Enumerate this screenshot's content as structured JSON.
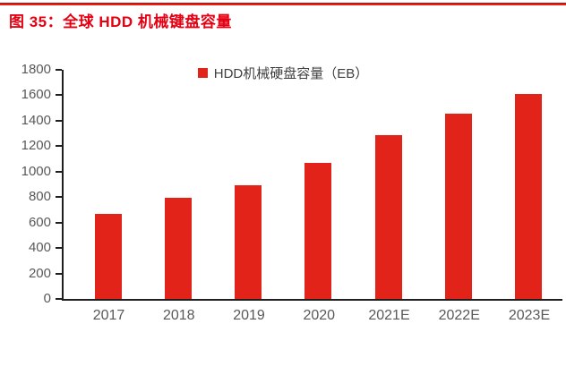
{
  "title": "图 35：全球 HDD 机械键盘容量",
  "legend": {
    "label": "HDD机械硬盘容量（EB）"
  },
  "colors": {
    "bar_red": "#e2231a",
    "title_red": "#e60012",
    "axis_black": "#1f1f1f",
    "label_gray": "#595959",
    "rule_red": "#ee1c0c"
  },
  "chart_data": {
    "type": "bar",
    "title": "图 35：全球 HDD 机械键盘容量",
    "legend": [
      "HDD机械硬盘容量（EB）"
    ],
    "legend_position": "top-center",
    "categories": [
      "2017",
      "2018",
      "2019",
      "2020",
      "2021E",
      "2022E",
      "2023E"
    ],
    "values": [
      665,
      795,
      895,
      1070,
      1285,
      1455,
      1610
    ],
    "xlabel": "",
    "ylabel": "",
    "ylim": [
      0,
      1800
    ],
    "yticks": [
      0,
      200,
      400,
      600,
      800,
      1000,
      1200,
      1400,
      1600,
      1800
    ],
    "grid": false,
    "bar_color": "#e2231a"
  }
}
